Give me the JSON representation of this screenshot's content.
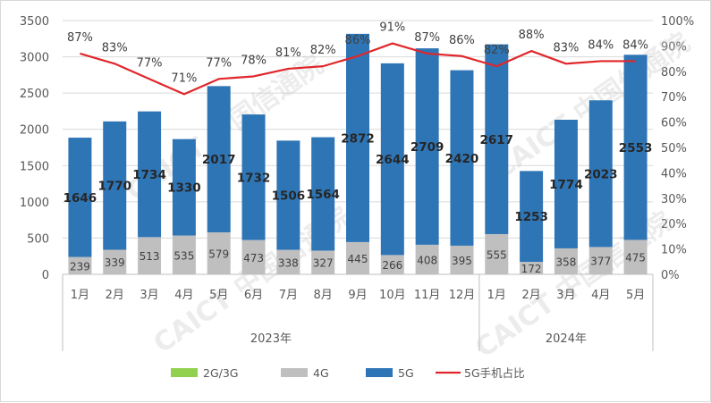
{
  "chart_data": {
    "type": "bar",
    "stacked": true,
    "years": [
      {
        "label": "2023年",
        "months": [
          "1月",
          "2月",
          "3月",
          "4月",
          "5月",
          "6月",
          "7月",
          "8月",
          "9月",
          "10月",
          "11月",
          "12月"
        ]
      },
      {
        "label": "2024年",
        "months": [
          "1月",
          "2月",
          "3月",
          "4月",
          "5月"
        ]
      }
    ],
    "series": [
      {
        "name": "2G/3G",
        "color": "#92d050",
        "values": [
          0,
          0,
          0,
          0,
          0,
          0,
          0,
          0,
          0,
          0,
          0,
          0,
          0,
          0,
          0,
          0,
          0
        ]
      },
      {
        "name": "4G",
        "color": "#bfbfbf",
        "values": [
          239,
          339,
          513,
          535,
          579,
          473,
          338,
          327,
          445,
          266,
          408,
          395,
          555,
          172,
          358,
          377,
          475
        ]
      },
      {
        "name": "5G",
        "color": "#2e75b6",
        "values": [
          1646,
          1770,
          1734,
          1330,
          2017,
          1732,
          1506,
          1564,
          2872,
          2644,
          2709,
          2420,
          2617,
          1253,
          1774,
          2023,
          2553
        ]
      },
      {
        "name": "5G手机占比",
        "color": "#e0262a",
        "type": "line",
        "axis": "right",
        "values": [
          87,
          83,
          77,
          71,
          77,
          78,
          81,
          82,
          86,
          91,
          87,
          86,
          82,
          88,
          83,
          84,
          84
        ],
        "labels": [
          "87%",
          "83%",
          "77%",
          "71%",
          "77%",
          "78%",
          "81%",
          "82%",
          "86%",
          "91%",
          "87%",
          "86%",
          "82%",
          "88%",
          "83%",
          "84%",
          "84%"
        ]
      }
    ],
    "y_left": {
      "min": 0,
      "max": 3500,
      "step": 500,
      "ticks": [
        "0",
        "500",
        "1000",
        "1500",
        "2000",
        "2500",
        "3000",
        "3500"
      ]
    },
    "y_right": {
      "min": 0,
      "max": 100,
      "step": 10,
      "ticks": [
        "0%",
        "10%",
        "20%",
        "30%",
        "40%",
        "50%",
        "60%",
        "70%",
        "80%",
        "90%",
        "100%"
      ]
    },
    "legend_position": "bottom",
    "watermark": "CAICT 中国信通院"
  }
}
